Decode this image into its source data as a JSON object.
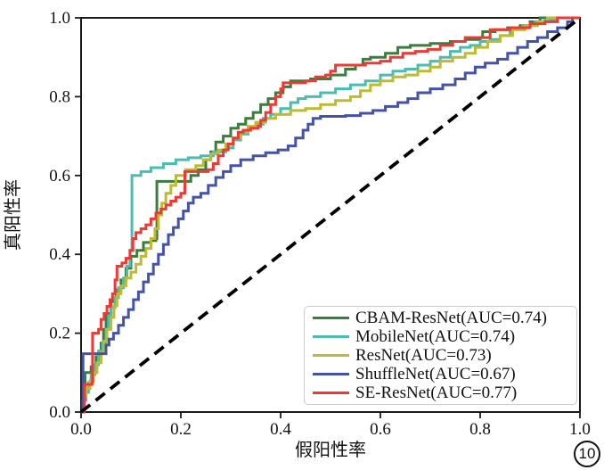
{
  "figure_number": "10",
  "chart_data": {
    "type": "line",
    "subtype": "roc-step-curves",
    "title": "",
    "xlabel": "假阳性率",
    "ylabel": "真阳性率",
    "xlim": [
      0.0,
      1.0
    ],
    "ylim": [
      0.0,
      1.0
    ],
    "grid": false,
    "legend_position": "lower right",
    "x_ticks": [
      0.0,
      0.2,
      0.4,
      0.6,
      0.8,
      1.0
    ],
    "y_ticks": [
      0.0,
      0.2,
      0.4,
      0.6,
      0.8,
      1.0
    ],
    "x_tick_labels": [
      "0.0",
      "0.2",
      "0.4",
      "0.6",
      "0.8",
      "1.0"
    ],
    "y_tick_labels": [
      "0.0",
      "0.2",
      "0.4",
      "0.6",
      "0.8",
      "1.0"
    ],
    "diagonal": {
      "from": [
        0,
        0
      ],
      "to": [
        1,
        1
      ],
      "color": "#000000",
      "style": "dashed"
    },
    "series": [
      {
        "name": "CBAM-ResNet",
        "auc": 0.74,
        "label": "CBAM-ResNet(AUC=0.74)",
        "color": "#3a7d3c",
        "points": [
          [
            0,
            0
          ],
          [
            0.005,
            0.055
          ],
          [
            0.008,
            0.1
          ],
          [
            0.02,
            0.115
          ],
          [
            0.03,
            0.14
          ],
          [
            0.04,
            0.175
          ],
          [
            0.045,
            0.21
          ],
          [
            0.05,
            0.25
          ],
          [
            0.06,
            0.28
          ],
          [
            0.07,
            0.31
          ],
          [
            0.08,
            0.335
          ],
          [
            0.09,
            0.365
          ],
          [
            0.1,
            0.395
          ],
          [
            0.112,
            0.41
          ],
          [
            0.125,
            0.43
          ],
          [
            0.14,
            0.435
          ],
          [
            0.15,
            0.44
          ],
          [
            0.152,
            0.585
          ],
          [
            0.21,
            0.585
          ],
          [
            0.22,
            0.6
          ],
          [
            0.235,
            0.615
          ],
          [
            0.25,
            0.64
          ],
          [
            0.26,
            0.66
          ],
          [
            0.27,
            0.685
          ],
          [
            0.285,
            0.7
          ],
          [
            0.3,
            0.72
          ],
          [
            0.315,
            0.73
          ],
          [
            0.33,
            0.745
          ],
          [
            0.345,
            0.76
          ],
          [
            0.36,
            0.78
          ],
          [
            0.375,
            0.795
          ],
          [
            0.39,
            0.81
          ],
          [
            0.405,
            0.825
          ],
          [
            0.42,
            0.84
          ],
          [
            0.46,
            0.845
          ],
          [
            0.5,
            0.855
          ],
          [
            0.53,
            0.87
          ],
          [
            0.55,
            0.88
          ],
          [
            0.565,
            0.895
          ],
          [
            0.58,
            0.9
          ],
          [
            0.61,
            0.91
          ],
          [
            0.635,
            0.925
          ],
          [
            0.66,
            0.93
          ],
          [
            0.7,
            0.935
          ],
          [
            0.74,
            0.94
          ],
          [
            0.77,
            0.945
          ],
          [
            0.8,
            0.95
          ],
          [
            0.805,
            0.965
          ],
          [
            0.83,
            0.97
          ],
          [
            0.855,
            0.975
          ],
          [
            0.88,
            0.98
          ],
          [
            0.9,
            0.99
          ],
          [
            0.92,
            1.0
          ],
          [
            1,
            1
          ]
        ]
      },
      {
        "name": "MobileNet",
        "auc": 0.74,
        "label": "MobileNet(AUC=0.74)",
        "color": "#4dbcb0",
        "points": [
          [
            0,
            0
          ],
          [
            0.004,
            0.03
          ],
          [
            0.01,
            0.05
          ],
          [
            0.015,
            0.075
          ],
          [
            0.02,
            0.095
          ],
          [
            0.028,
            0.12
          ],
          [
            0.035,
            0.155
          ],
          [
            0.043,
            0.175
          ],
          [
            0.05,
            0.21
          ],
          [
            0.055,
            0.245
          ],
          [
            0.06,
            0.265
          ],
          [
            0.068,
            0.29
          ],
          [
            0.075,
            0.315
          ],
          [
            0.085,
            0.34
          ],
          [
            0.092,
            0.37
          ],
          [
            0.098,
            0.41
          ],
          [
            0.102,
            0.6
          ],
          [
            0.12,
            0.61
          ],
          [
            0.14,
            0.62
          ],
          [
            0.165,
            0.63
          ],
          [
            0.19,
            0.64
          ],
          [
            0.215,
            0.645
          ],
          [
            0.24,
            0.65
          ],
          [
            0.265,
            0.66
          ],
          [
            0.29,
            0.67
          ],
          [
            0.305,
            0.69
          ],
          [
            0.32,
            0.705
          ],
          [
            0.335,
            0.72
          ],
          [
            0.35,
            0.73
          ],
          [
            0.365,
            0.745
          ],
          [
            0.38,
            0.755
          ],
          [
            0.4,
            0.77
          ],
          [
            0.42,
            0.785
          ],
          [
            0.435,
            0.795
          ],
          [
            0.45,
            0.8
          ],
          [
            0.48,
            0.81
          ],
          [
            0.51,
            0.82
          ],
          [
            0.54,
            0.83
          ],
          [
            0.57,
            0.84
          ],
          [
            0.6,
            0.855
          ],
          [
            0.625,
            0.865
          ],
          [
            0.65,
            0.87
          ],
          [
            0.675,
            0.88
          ],
          [
            0.7,
            0.89
          ],
          [
            0.72,
            0.9
          ],
          [
            0.74,
            0.915
          ],
          [
            0.76,
            0.925
          ],
          [
            0.78,
            0.93
          ],
          [
            0.8,
            0.94
          ],
          [
            0.82,
            0.945
          ],
          [
            0.84,
            0.955
          ],
          [
            0.86,
            0.97
          ],
          [
            0.885,
            0.98
          ],
          [
            0.91,
            0.99
          ],
          [
            0.93,
            0.995
          ],
          [
            0.95,
            1.0
          ],
          [
            1,
            1
          ]
        ]
      },
      {
        "name": "ResNet",
        "auc": 0.73,
        "label": "ResNet(AUC=0.73)",
        "color": "#bcbb33",
        "points": [
          [
            0,
            0
          ],
          [
            0.005,
            0.04
          ],
          [
            0.01,
            0.06
          ],
          [
            0.018,
            0.08
          ],
          [
            0.025,
            0.1
          ],
          [
            0.032,
            0.125
          ],
          [
            0.04,
            0.15
          ],
          [
            0.046,
            0.18
          ],
          [
            0.052,
            0.21
          ],
          [
            0.06,
            0.24
          ],
          [
            0.066,
            0.27
          ],
          [
            0.072,
            0.3
          ],
          [
            0.08,
            0.32
          ],
          [
            0.09,
            0.34
          ],
          [
            0.1,
            0.355
          ],
          [
            0.11,
            0.375
          ],
          [
            0.12,
            0.395
          ],
          [
            0.13,
            0.415
          ],
          [
            0.14,
            0.44
          ],
          [
            0.148,
            0.465
          ],
          [
            0.155,
            0.5
          ],
          [
            0.162,
            0.53
          ],
          [
            0.17,
            0.555
          ],
          [
            0.18,
            0.575
          ],
          [
            0.19,
            0.6
          ],
          [
            0.21,
            0.615
          ],
          [
            0.23,
            0.625
          ],
          [
            0.245,
            0.64
          ],
          [
            0.26,
            0.655
          ],
          [
            0.275,
            0.665
          ],
          [
            0.29,
            0.68
          ],
          [
            0.305,
            0.695
          ],
          [
            0.32,
            0.71
          ],
          [
            0.335,
            0.725
          ],
          [
            0.35,
            0.735
          ],
          [
            0.37,
            0.745
          ],
          [
            0.39,
            0.755
          ],
          [
            0.42,
            0.765
          ],
          [
            0.45,
            0.77
          ],
          [
            0.48,
            0.78
          ],
          [
            0.51,
            0.79
          ],
          [
            0.54,
            0.8
          ],
          [
            0.56,
            0.815
          ],
          [
            0.58,
            0.83
          ],
          [
            0.6,
            0.84
          ],
          [
            0.625,
            0.85
          ],
          [
            0.65,
            0.855
          ],
          [
            0.675,
            0.865
          ],
          [
            0.7,
            0.875
          ],
          [
            0.72,
            0.89
          ],
          [
            0.745,
            0.9
          ],
          [
            0.77,
            0.91
          ],
          [
            0.79,
            0.925
          ],
          [
            0.815,
            0.94
          ],
          [
            0.84,
            0.955
          ],
          [
            0.865,
            0.97
          ],
          [
            0.89,
            0.98
          ],
          [
            0.915,
            0.99
          ],
          [
            0.935,
            1.0
          ],
          [
            1,
            1
          ]
        ]
      },
      {
        "name": "ShuffleNet",
        "auc": 0.67,
        "label": "ShuffleNet(AUC=0.67)",
        "color": "#4453a6",
        "points": [
          [
            0,
            0
          ],
          [
            0.004,
            0.148
          ],
          [
            0.045,
            0.148
          ],
          [
            0.05,
            0.17
          ],
          [
            0.056,
            0.185
          ],
          [
            0.065,
            0.2
          ],
          [
            0.075,
            0.22
          ],
          [
            0.085,
            0.24
          ],
          [
            0.095,
            0.26
          ],
          [
            0.105,
            0.285
          ],
          [
            0.115,
            0.305
          ],
          [
            0.125,
            0.33
          ],
          [
            0.135,
            0.35
          ],
          [
            0.145,
            0.375
          ],
          [
            0.155,
            0.4
          ],
          [
            0.165,
            0.425
          ],
          [
            0.175,
            0.45
          ],
          [
            0.185,
            0.468
          ],
          [
            0.195,
            0.49
          ],
          [
            0.205,
            0.51
          ],
          [
            0.215,
            0.53
          ],
          [
            0.225,
            0.545
          ],
          [
            0.24,
            0.555
          ],
          [
            0.255,
            0.575
          ],
          [
            0.27,
            0.595
          ],
          [
            0.285,
            0.61
          ],
          [
            0.3,
            0.625
          ],
          [
            0.32,
            0.64
          ],
          [
            0.345,
            0.65
          ],
          [
            0.37,
            0.658
          ],
          [
            0.395,
            0.665
          ],
          [
            0.415,
            0.675
          ],
          [
            0.43,
            0.695
          ],
          [
            0.445,
            0.715
          ],
          [
            0.455,
            0.73
          ],
          [
            0.465,
            0.745
          ],
          [
            0.48,
            0.75
          ],
          [
            0.53,
            0.752
          ],
          [
            0.56,
            0.758
          ],
          [
            0.585,
            0.765
          ],
          [
            0.61,
            0.775
          ],
          [
            0.635,
            0.785
          ],
          [
            0.655,
            0.795
          ],
          [
            0.675,
            0.81
          ],
          [
            0.7,
            0.82
          ],
          [
            0.725,
            0.83
          ],
          [
            0.75,
            0.845
          ],
          [
            0.77,
            0.86
          ],
          [
            0.79,
            0.875
          ],
          [
            0.81,
            0.885
          ],
          [
            0.835,
            0.895
          ],
          [
            0.855,
            0.91
          ],
          [
            0.875,
            0.925
          ],
          [
            0.895,
            0.94
          ],
          [
            0.915,
            0.95
          ],
          [
            0.935,
            0.965
          ],
          [
            0.955,
            0.975
          ],
          [
            0.975,
            0.99
          ],
          [
            0.985,
            1.0
          ],
          [
            1,
            1
          ]
        ]
      },
      {
        "name": "SE-ResNet",
        "auc": 0.77,
        "label": "SE-ResNet(AUC=0.77)",
        "color": "#ee3a34",
        "points": [
          [
            0,
            0
          ],
          [
            0.007,
            0.07
          ],
          [
            0.022,
            0.075
          ],
          [
            0.023,
            0.2
          ],
          [
            0.035,
            0.21
          ],
          [
            0.04,
            0.235
          ],
          [
            0.046,
            0.25
          ],
          [
            0.052,
            0.268
          ],
          [
            0.058,
            0.285
          ],
          [
            0.063,
            0.3
          ],
          [
            0.068,
            0.335
          ],
          [
            0.072,
            0.37
          ],
          [
            0.082,
            0.378
          ],
          [
            0.09,
            0.39
          ],
          [
            0.098,
            0.41
          ],
          [
            0.104,
            0.44
          ],
          [
            0.11,
            0.455
          ],
          [
            0.12,
            0.465
          ],
          [
            0.13,
            0.475
          ],
          [
            0.14,
            0.49
          ],
          [
            0.15,
            0.505
          ],
          [
            0.16,
            0.515
          ],
          [
            0.17,
            0.525
          ],
          [
            0.18,
            0.535
          ],
          [
            0.19,
            0.545
          ],
          [
            0.2,
            0.555
          ],
          [
            0.208,
            0.61
          ],
          [
            0.255,
            0.615
          ],
          [
            0.265,
            0.63
          ],
          [
            0.275,
            0.65
          ],
          [
            0.285,
            0.665
          ],
          [
            0.295,
            0.68
          ],
          [
            0.305,
            0.695
          ],
          [
            0.315,
            0.71
          ],
          [
            0.325,
            0.715
          ],
          [
            0.34,
            0.72
          ],
          [
            0.355,
            0.725
          ],
          [
            0.36,
            0.74
          ],
          [
            0.37,
            0.76
          ],
          [
            0.38,
            0.78
          ],
          [
            0.39,
            0.8
          ],
          [
            0.4,
            0.82
          ],
          [
            0.405,
            0.835
          ],
          [
            0.45,
            0.84
          ],
          [
            0.47,
            0.85
          ],
          [
            0.49,
            0.855
          ],
          [
            0.5,
            0.865
          ],
          [
            0.51,
            0.88
          ],
          [
            0.57,
            0.885
          ],
          [
            0.6,
            0.89
          ],
          [
            0.62,
            0.9
          ],
          [
            0.645,
            0.91
          ],
          [
            0.67,
            0.915
          ],
          [
            0.695,
            0.92
          ],
          [
            0.72,
            0.93
          ],
          [
            0.745,
            0.94
          ],
          [
            0.77,
            0.95
          ],
          [
            0.82,
            0.97
          ],
          [
            0.86,
            0.975
          ],
          [
            0.9,
            0.985
          ],
          [
            0.93,
            0.99
          ],
          [
            0.955,
            1.0
          ],
          [
            1,
            1
          ]
        ]
      }
    ]
  }
}
